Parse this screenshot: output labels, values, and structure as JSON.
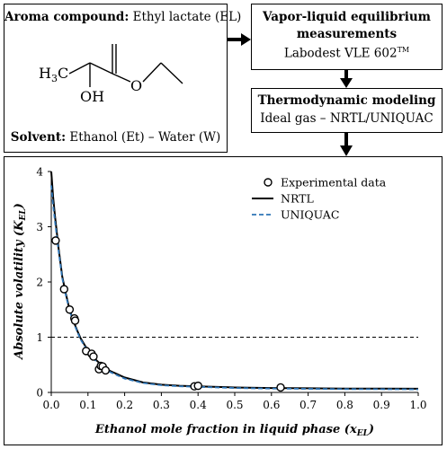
{
  "aroma_box": {
    "label": "Aroma compound:",
    "value": "Ethyl lactate (EL)",
    "solvent_label": "Solvent:",
    "solvent_value": "Ethanol (Et) – Water (W)",
    "molecule": {
      "h3c": "H",
      "h3c_sub": "3",
      "h3c_c": "C",
      "oh": "OH",
      "o": "O"
    }
  },
  "vle_box": {
    "title_line1": "Vapor-liquid equilibrium",
    "title_line2": "measurements",
    "device": "Labodest VLE 602",
    "tm": "TM"
  },
  "thermo_box": {
    "title": "Thermodynamic modeling",
    "subtitle": "Ideal gas – NRTL/UNIQUAC"
  },
  "colors": {
    "uniquac": "#2e75b6",
    "nrtl": "#000000"
  },
  "chart_data": {
    "type": "scatter",
    "xlabel": "Ethanol mole fraction in liquid phase (x",
    "xlabel_sub": "EL",
    "xlabel_close": ")",
    "ylabel": "Absolute volatility (K",
    "ylabel_sub": "EL",
    "ylabel_close": ")",
    "xlim": [
      0,
      1
    ],
    "ylim": [
      0,
      4
    ],
    "x_ticks": [
      "0.0",
      "0.1",
      "0.2",
      "0.3",
      "0.4",
      "0.5",
      "0.6",
      "0.7",
      "0.8",
      "0.9",
      "1.0"
    ],
    "y_ticks": [
      "0",
      "1",
      "2",
      "3",
      "4"
    ],
    "reference_line": {
      "y": 1,
      "style": "dashed"
    },
    "legend_position": "top-right",
    "series": [
      {
        "name": "Experimental data",
        "kind": "markers",
        "x": [
          0.012,
          0.035,
          0.05,
          0.063,
          0.065,
          0.095,
          0.11,
          0.115,
          0.13,
          0.135,
          0.14,
          0.148,
          0.39,
          0.4,
          0.625
        ],
        "y": [
          2.75,
          1.87,
          1.5,
          1.34,
          1.3,
          0.75,
          0.7,
          0.65,
          0.42,
          0.48,
          0.47,
          0.4,
          0.11,
          0.12,
          0.09
        ]
      },
      {
        "name": "NRTL",
        "kind": "line",
        "x": [
          0.0,
          0.005,
          0.01,
          0.02,
          0.03,
          0.04,
          0.05,
          0.06,
          0.07,
          0.08,
          0.1,
          0.12,
          0.14,
          0.16,
          0.2,
          0.25,
          0.3,
          0.35,
          0.4,
          0.5,
          0.6,
          0.7,
          0.8,
          0.9,
          1.0
        ],
        "y": [
          4.0,
          3.55,
          3.2,
          2.6,
          2.1,
          1.78,
          1.5,
          1.3,
          1.13,
          0.98,
          0.76,
          0.6,
          0.48,
          0.39,
          0.27,
          0.18,
          0.14,
          0.12,
          0.11,
          0.09,
          0.08,
          0.075,
          0.07,
          0.068,
          0.066
        ]
      },
      {
        "name": "UNIQUAC",
        "kind": "dashed-line",
        "x": [
          0.0,
          0.005,
          0.01,
          0.02,
          0.03,
          0.04,
          0.05,
          0.06,
          0.07,
          0.08,
          0.1,
          0.12,
          0.14,
          0.16,
          0.2,
          0.25,
          0.3,
          0.35,
          0.4,
          0.5,
          0.6,
          0.7,
          0.8,
          0.9,
          1.0
        ],
        "y": [
          3.75,
          3.4,
          3.1,
          2.55,
          2.07,
          1.75,
          1.48,
          1.28,
          1.11,
          0.96,
          0.74,
          0.58,
          0.46,
          0.37,
          0.25,
          0.17,
          0.13,
          0.11,
          0.1,
          0.08,
          0.07,
          0.065,
          0.06,
          0.058,
          0.055
        ]
      }
    ]
  }
}
